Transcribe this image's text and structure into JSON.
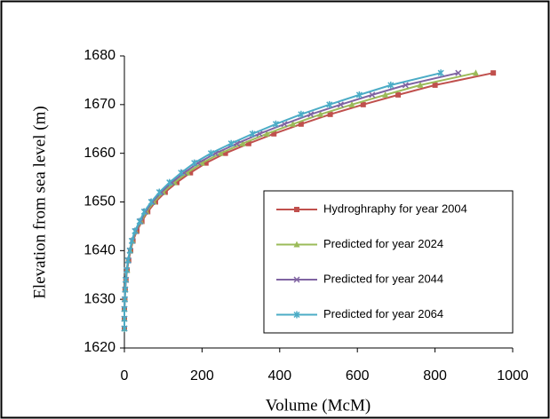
{
  "chart_data": {
    "type": "line",
    "xlabel": "Volume (McM)",
    "ylabel": "Elevation from sea level (m)",
    "xlim": [
      0,
      1000
    ],
    "xticks": [
      0,
      200,
      400,
      600,
      800,
      1000
    ],
    "ylim": [
      1620,
      1680
    ],
    "yticks": [
      1620,
      1630,
      1640,
      1650,
      1660,
      1670,
      1680
    ],
    "grid": false,
    "legend": "lower right",
    "series": [
      {
        "name": "Hydroghraphy for year 2004",
        "color": "#c0504d",
        "marker": "square",
        "x": [
          0,
          0,
          0,
          1,
          2,
          4,
          7,
          11,
          16,
          22,
          32,
          45,
          60,
          80,
          105,
          135,
          170,
          210,
          260,
          320,
          385,
          455,
          530,
          615,
          705,
          800,
          950
        ],
        "values": [
          1624,
          1626,
          1628,
          1630,
          1632,
          1634,
          1636,
          1638,
          1640,
          1642,
          1644,
          1646,
          1648,
          1650,
          1652,
          1654,
          1656,
          1658,
          1660,
          1662,
          1664,
          1666,
          1668,
          1670,
          1672,
          1674,
          1676.5
        ]
      },
      {
        "name": "Predicted for year 2024",
        "color": "#9bbb59",
        "marker": "triangle",
        "x": [
          0,
          0,
          0,
          1,
          2,
          4,
          7,
          10,
          15,
          21,
          30,
          43,
          57,
          76,
          100,
          129,
          162,
          200,
          248,
          305,
          367,
          434,
          505,
          586,
          672,
          762,
          905
        ],
        "values": [
          1624,
          1626,
          1628,
          1630,
          1632,
          1634,
          1636,
          1638,
          1640,
          1642,
          1644,
          1646,
          1648,
          1650,
          1652,
          1654,
          1656,
          1658,
          1660,
          1662,
          1664,
          1666,
          1668,
          1670,
          1672,
          1674,
          1676.5
        ]
      },
      {
        "name": "Predicted for year 2044",
        "color": "#8064a2",
        "marker": "x",
        "x": [
          0,
          0,
          0,
          1,
          2,
          4,
          6,
          10,
          14,
          20,
          29,
          41,
          54,
          72,
          95,
          122,
          154,
          190,
          235,
          290,
          348,
          412,
          480,
          557,
          638,
          724,
          860
        ],
        "values": [
          1624,
          1626,
          1628,
          1630,
          1632,
          1634,
          1636,
          1638,
          1640,
          1642,
          1644,
          1646,
          1648,
          1650,
          1652,
          1654,
          1656,
          1658,
          1660,
          1662,
          1664,
          1666,
          1668,
          1670,
          1672,
          1674,
          1676.5
        ]
      },
      {
        "name": "Predicted for year 2064",
        "color": "#4bacc6",
        "marker": "star",
        "x": [
          0,
          0,
          0,
          1,
          2,
          3,
          6,
          9,
          14,
          19,
          27,
          39,
          51,
          69,
          90,
          116,
          146,
          180,
          223,
          275,
          330,
          390,
          455,
          528,
          605,
          686,
          815
        ],
        "values": [
          1624,
          1626,
          1628,
          1630,
          1632,
          1634,
          1636,
          1638,
          1640,
          1642,
          1644,
          1646,
          1648,
          1650,
          1652,
          1654,
          1656,
          1658,
          1660,
          1662,
          1664,
          1666,
          1668,
          1670,
          1672,
          1674,
          1676.5
        ]
      }
    ]
  }
}
